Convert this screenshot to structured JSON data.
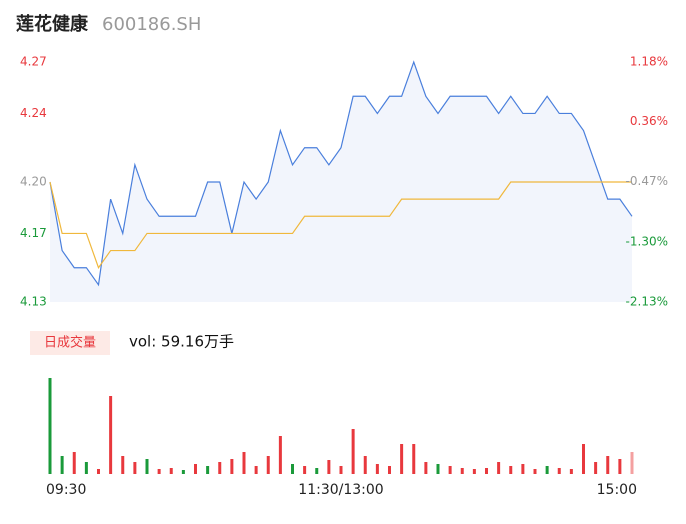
{
  "header": {
    "name": "莲花健康",
    "code": "600186.SH"
  },
  "chart_data": [
    {
      "type": "line",
      "x": [
        0,
        5,
        10,
        15,
        20,
        25,
        30,
        35,
        40,
        45,
        50,
        55,
        60,
        65,
        70,
        75,
        80,
        85,
        90,
        95,
        100,
        105,
        110,
        115,
        120,
        125,
        130,
        135,
        140,
        145,
        150,
        155,
        160,
        165,
        170,
        175,
        180,
        185,
        190,
        195,
        200,
        205,
        210,
        215,
        220,
        225,
        230,
        235,
        240
      ],
      "xlim": [
        0,
        240
      ],
      "series": [
        {
          "color": "#4a7fdc",
          "fill": "#f2f5fc",
          "values": [
            4.2,
            4.16,
            4.15,
            4.15,
            4.14,
            4.19,
            4.17,
            4.21,
            4.19,
            4.18,
            4.18,
            4.18,
            4.18,
            4.2,
            4.2,
            4.17,
            4.2,
            4.19,
            4.2,
            4.23,
            4.21,
            4.22,
            4.22,
            4.21,
            4.22,
            4.25,
            4.25,
            4.24,
            4.25,
            4.25,
            4.27,
            4.25,
            4.24,
            4.25,
            4.25,
            4.25,
            4.25,
            4.24,
            4.25,
            4.24,
            4.24,
            4.25,
            4.24,
            4.24,
            4.23,
            4.21,
            4.19,
            4.19,
            4.18
          ]
        },
        {
          "color": "#f0b83c",
          "values": [
            4.2,
            4.17,
            4.17,
            4.17,
            4.15,
            4.16,
            4.16,
            4.16,
            4.17,
            4.17,
            4.17,
            4.17,
            4.17,
            4.17,
            4.17,
            4.17,
            4.17,
            4.17,
            4.17,
            4.17,
            4.17,
            4.18,
            4.18,
            4.18,
            4.18,
            4.18,
            4.18,
            4.18,
            4.18,
            4.19,
            4.19,
            4.19,
            4.19,
            4.19,
            4.19,
            4.19,
            4.19,
            4.19,
            4.2,
            4.2,
            4.2,
            4.2,
            4.2,
            4.2,
            4.2,
            4.2,
            4.2,
            4.2,
            4.2
          ]
        }
      ],
      "ylim": [
        4.13,
        4.27
      ],
      "yticks": [
        4.27,
        4.24,
        {
          "value": 4.2,
          "label": "4.20"
        },
        4.17,
        4.13
      ],
      "y2lim": [
        -2.13,
        1.18
      ],
      "y2ticks": [
        {
          "value": 1.18,
          "label": "1.18%"
        },
        {
          "value": 0.36,
          "label": "0.36%"
        },
        {
          "value": -0.47,
          "label": "-0.47%"
        },
        {
          "value": -1.3,
          "label": "-1.30%"
        },
        {
          "value": -2.13,
          "label": "-2.13%"
        }
      ],
      "tick_colors": [
        "#e8383d",
        "#e8383d",
        "#999999",
        "#1a9a3a",
        "#1a9a3a"
      ]
    },
    {
      "type": "bar",
      "title": "日成交量",
      "annotation": "vol: 59.16万手",
      "x": [
        0,
        5,
        10,
        15,
        20,
        25,
        30,
        35,
        40,
        45,
        50,
        55,
        60,
        65,
        70,
        75,
        80,
        85,
        90,
        95,
        100,
        105,
        110,
        115,
        120,
        125,
        130,
        135,
        140,
        145,
        150,
        155,
        160,
        165,
        170,
        175,
        180,
        185,
        190,
        195,
        200,
        205,
        210,
        215,
        220,
        225,
        230,
        235,
        240
      ],
      "xlim": [
        0,
        240
      ],
      "xticks": [
        {
          "value": 0,
          "label": "09:30"
        },
        {
          "value": 120,
          "label": "11:30/13:00"
        },
        {
          "value": 240,
          "label": "15:00"
        }
      ],
      "ylim": [
        0,
        100
      ],
      "values": [
        96,
        18,
        22,
        12,
        5,
        78,
        18,
        12,
        15,
        5,
        6,
        4,
        10,
        8,
        12,
        15,
        22,
        8,
        18,
        38,
        10,
        8,
        6,
        14,
        8,
        45,
        18,
        10,
        8,
        30,
        30,
        12,
        10,
        8,
        6,
        5,
        6,
        12,
        8,
        10,
        5,
        8,
        6,
        5,
        30,
        12,
        18,
        15,
        22
      ],
      "colors": [
        "#1a9a3a",
        "#1a9a3a",
        "#e8383d",
        "#1a9a3a",
        "#e8383d",
        "#e8383d",
        "#e8383d",
        "#e8383d",
        "#1a9a3a",
        "#e8383d",
        "#e8383d",
        "#1a9a3a",
        "#e8383d",
        "#1a9a3a",
        "#e8383d",
        "#e8383d",
        "#e8383d",
        "#e8383d",
        "#e8383d",
        "#e8383d",
        "#1a9a3a",
        "#e8383d",
        "#1a9a3a",
        "#e8383d",
        "#e8383d",
        "#e8383d",
        "#e8383d",
        "#e8383d",
        "#e8383d",
        "#e8383d",
        "#e8383d",
        "#e8383d",
        "#1a9a3a",
        "#e8383d",
        "#e8383d",
        "#e8383d",
        "#e8383d",
        "#e8383d",
        "#e8383d",
        "#e8383d",
        "#e8383d",
        "#1a9a3a",
        "#e8383d",
        "#e8383d",
        "#e8383d",
        "#e8383d",
        "#e8383d",
        "#e8383d",
        "#f4a0a0"
      ]
    }
  ]
}
